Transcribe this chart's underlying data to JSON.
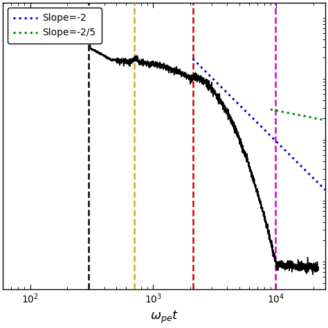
{
  "xlim": [
    60,
    25000
  ],
  "xlabel": "$\\omega_{pe}t$",
  "vlines": [
    {
      "x": 300,
      "color": "#000000",
      "linestyle": "--",
      "lw": 1.8
    },
    {
      "x": 700,
      "color": "#DAA520",
      "linestyle": "--",
      "lw": 1.8
    },
    {
      "x": 2100,
      "color": "#CC0000",
      "linestyle": "--",
      "lw": 1.8
    },
    {
      "x": 9800,
      "color": "#CC00CC",
      "linestyle": "--",
      "lw": 1.8
    }
  ],
  "slope_blue": {
    "label": "Slope=-2",
    "color": "#0000EE",
    "x_start": 2100,
    "x_end": 25000,
    "anchor_x": 2100,
    "anchor_y_log": 0.28,
    "slope": -2
  },
  "slope_green": {
    "label": "Slope=-2/5",
    "color": "#008800",
    "x_start": 9000,
    "x_end": 25000,
    "anchor_x": 9000,
    "anchor_y_log": -0.55,
    "slope": -0.4
  },
  "legend_loc": "upper left",
  "background_color": "#ffffff",
  "main_line_color": "#000000",
  "seed": 42,
  "ylim_log_min": -3.5,
  "ylim_log_max": 1.2
}
